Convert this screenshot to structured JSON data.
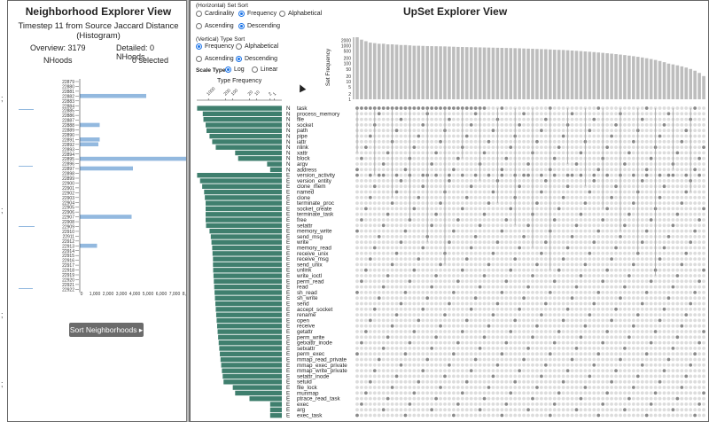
{
  "left_strip_marks": [
    ";",
    ";",
    ";",
    ";"
  ],
  "neighborhood": {
    "title": "Neighborhood Explorer View",
    "subtitle_line1": "Timestep 11 from Source Jaccard Distance",
    "subtitle_line2": "(Histogram)",
    "overview_label": "Overview: 3179",
    "overview_unit": "NHoods",
    "detailed_label": "Detailed: 0 NHoods,",
    "detailed_unit": "0 selected",
    "sort_button": "Sort Neighborhoods ▸",
    "histogram": {
      "ids": [
        "22879",
        "22880",
        "22881",
        "22882",
        "22883",
        "22884",
        "22885",
        "22886",
        "22887",
        "22888",
        "22889",
        "22890",
        "22891",
        "22892",
        "22893",
        "22894",
        "22895",
        "22896",
        "22897",
        "22898",
        "22899",
        "22900",
        "22901",
        "22902",
        "22903",
        "22904",
        "22905",
        "22906",
        "22907",
        "22908",
        "22909",
        "22910",
        "22911",
        "22912",
        "22913",
        "22914",
        "22915",
        "22916",
        "22917",
        "22918",
        "22919",
        "22920",
        "22921",
        "22922"
      ],
      "values": [
        0,
        0,
        0,
        5000,
        0,
        0,
        0,
        0,
        0,
        1500,
        0,
        0,
        1500,
        1400,
        0,
        0,
        8000,
        0,
        4000,
        0,
        0,
        0,
        0,
        0,
        0,
        0,
        0,
        0,
        3900,
        0,
        0,
        0,
        0,
        0,
        1300,
        0,
        0,
        0,
        0,
        0,
        0,
        0,
        0,
        0
      ],
      "x_ticks": [
        "0",
        "1,000",
        "2,000",
        "3,000",
        "4,000",
        "5,000",
        "6,000",
        "7,000",
        "8,000"
      ],
      "bar_color": "#93b9df"
    }
  },
  "upset": {
    "title": "UpSet Explorer View",
    "hsort_label": "(Horizontal) Set Sort",
    "hsort_options": [
      "Cardinality",
      "Frequency",
      "Alphabetical"
    ],
    "hsort_selected": "Frequency",
    "hdir_options": [
      "Ascending",
      "Descending"
    ],
    "hdir_selected": "Descending",
    "vsort_label": "(Vertical) Type Sort",
    "vsort_options": [
      "Frequency",
      "Alphabetical"
    ],
    "vsort_selected": "Frequency",
    "vdir_options": [
      "Ascending",
      "Descending"
    ],
    "vdir_selected": "Descending",
    "scale_label": "Scale Type:",
    "scale_options": [
      "Log",
      "Linear"
    ],
    "scale_selected": "Log",
    "type_freq_label": "Type Frequency",
    "set_freq_label": "Set Frequency",
    "set_freq_ticks": [
      "2000",
      "1000",
      "500",
      "200",
      "100",
      "50",
      "20",
      "10",
      "5",
      "2",
      "1"
    ],
    "type_freq_ticks": [
      "1000",
      "200",
      "100",
      "20",
      "10",
      "2",
      "1"
    ],
    "bar_color": "#3f7f6e",
    "types": [
      {
        "k": "N",
        "name": "task",
        "v": 2900
      },
      {
        "k": "N",
        "name": "process_memory",
        "v": 1700
      },
      {
        "k": "N",
        "name": "file",
        "v": 1600
      },
      {
        "k": "N",
        "name": "socket",
        "v": 1300
      },
      {
        "k": "N",
        "name": "path",
        "v": 1200
      },
      {
        "k": "N",
        "name": "pipe",
        "v": 900
      },
      {
        "k": "N",
        "name": "iattr",
        "v": 700
      },
      {
        "k": "N",
        "name": "nlink",
        "v": 500
      },
      {
        "k": "N",
        "name": "xattr",
        "v": 80
      },
      {
        "k": "N",
        "name": "block",
        "v": 60
      },
      {
        "k": "N",
        "name": "argv",
        "v": 3
      },
      {
        "k": "N",
        "name": "address",
        "v": 2
      },
      {
        "k": "E",
        "name": "version_activity",
        "v": 2900
      },
      {
        "k": "E",
        "name": "version_entity",
        "v": 2200
      },
      {
        "k": "E",
        "name": "clone_mem",
        "v": 1800
      },
      {
        "k": "E",
        "name": "named",
        "v": 1500
      },
      {
        "k": "E",
        "name": "clone",
        "v": 1400
      },
      {
        "k": "E",
        "name": "terminate_proc",
        "v": 1300
      },
      {
        "k": "E",
        "name": "socket_create",
        "v": 1300
      },
      {
        "k": "E",
        "name": "terminate_task",
        "v": 1300
      },
      {
        "k": "E",
        "name": "free",
        "v": 1300
      },
      {
        "k": "E",
        "name": "setattr",
        "v": 1250
      },
      {
        "k": "E",
        "name": "memory_write",
        "v": 900
      },
      {
        "k": "E",
        "name": "send_msg",
        "v": 800
      },
      {
        "k": "E",
        "name": "write",
        "v": 750
      },
      {
        "k": "E",
        "name": "memory_read",
        "v": 700
      },
      {
        "k": "E",
        "name": "receive_unix",
        "v": 680
      },
      {
        "k": "E",
        "name": "receive_msg",
        "v": 650
      },
      {
        "k": "E",
        "name": "send_unix",
        "v": 650
      },
      {
        "k": "E",
        "name": "unlink",
        "v": 640
      },
      {
        "k": "E",
        "name": "write_ioctl",
        "v": 620
      },
      {
        "k": "E",
        "name": "perm_read",
        "v": 600
      },
      {
        "k": "E",
        "name": "read",
        "v": 580
      },
      {
        "k": "E",
        "name": "sh_read",
        "v": 560
      },
      {
        "k": "E",
        "name": "sh_write",
        "v": 540
      },
      {
        "k": "E",
        "name": "send",
        "v": 520
      },
      {
        "k": "E",
        "name": "accept_socket",
        "v": 500
      },
      {
        "k": "E",
        "name": "rename",
        "v": 480
      },
      {
        "k": "E",
        "name": "open",
        "v": 460
      },
      {
        "k": "E",
        "name": "receive",
        "v": 440
      },
      {
        "k": "E",
        "name": "getattr",
        "v": 420
      },
      {
        "k": "E",
        "name": "perm_write",
        "v": 400
      },
      {
        "k": "E",
        "name": "getxattr_inode",
        "v": 380
      },
      {
        "k": "E",
        "name": "setxattr",
        "v": 360
      },
      {
        "k": "E",
        "name": "perm_exec",
        "v": 340
      },
      {
        "k": "E",
        "name": "mmap_read_private",
        "v": 320
      },
      {
        "k": "E",
        "name": "mmap_exec_private",
        "v": 300
      },
      {
        "k": "E",
        "name": "mmap_write_private",
        "v": 280
      },
      {
        "k": "E",
        "name": "setattr_inode",
        "v": 260
      },
      {
        "k": "E",
        "name": "setuid",
        "v": 240
      },
      {
        "k": "E",
        "name": "file_lock",
        "v": 100
      },
      {
        "k": "E",
        "name": "munmap",
        "v": 80
      },
      {
        "k": "E",
        "name": "ptrace_read_task",
        "v": 20
      },
      {
        "k": "E",
        "name": "exec",
        "v": 2
      },
      {
        "k": "E",
        "name": "arg",
        "v": 2
      },
      {
        "k": "E",
        "name": "exec_task",
        "v": 2
      }
    ],
    "set_counts": [
      3000,
      2200,
      1800,
      1500,
      1400,
      1300,
      1300,
      1200,
      1200,
      1150,
      1100,
      1100,
      1050,
      1000,
      1000,
      980,
      960,
      950,
      940,
      930,
      920,
      900,
      880,
      860,
      850,
      840,
      830,
      820,
      810,
      800,
      790,
      780,
      770,
      760,
      750,
      740,
      730,
      720,
      700,
      690,
      680,
      660,
      650,
      640,
      620,
      600,
      590,
      580,
      560,
      540,
      520,
      500,
      480,
      460,
      440,
      420,
      400,
      380,
      360,
      340,
      320,
      300,
      280,
      260,
      240,
      220,
      200,
      180,
      160,
      140,
      120,
      100,
      90,
      80,
      70,
      60,
      50,
      40,
      30,
      20
    ]
  }
}
